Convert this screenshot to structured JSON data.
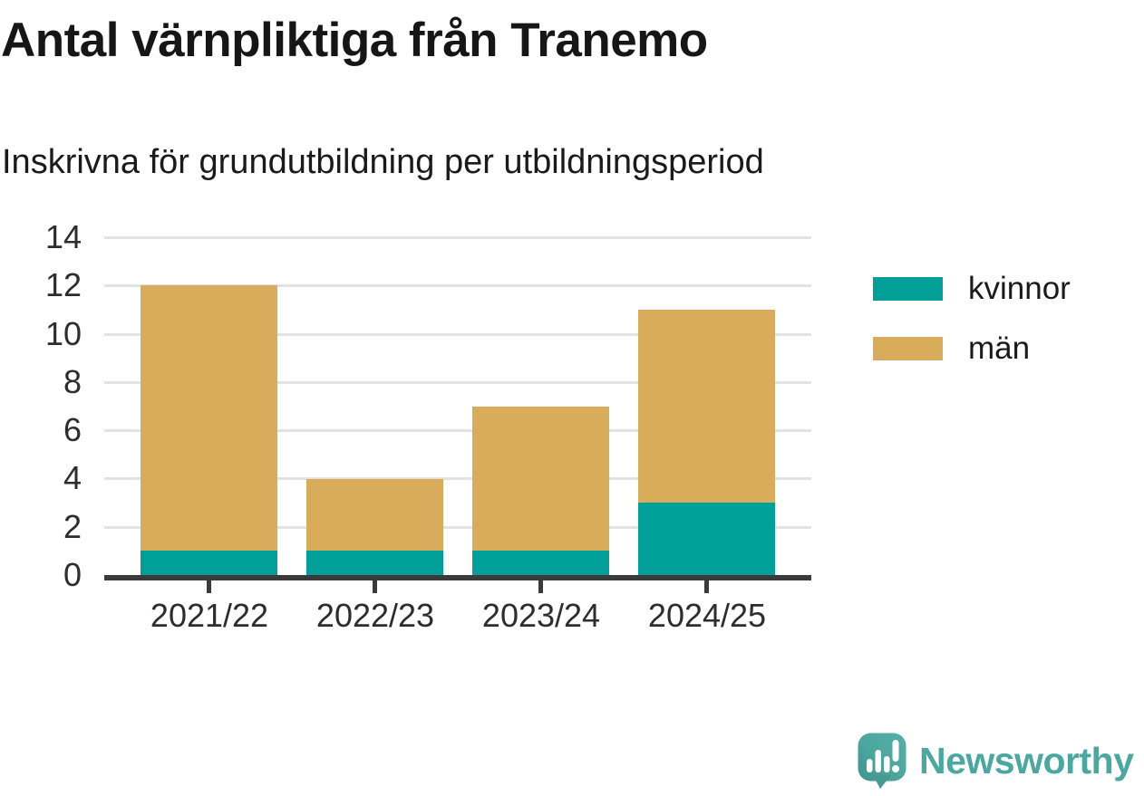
{
  "chart_data": {
    "type": "bar",
    "stacked": true,
    "title": "Antal värnpliktiga från Tranemo",
    "subtitle": "Inskrivna för grundutbildning per utbildningsperiod",
    "categories": [
      "2021/22",
      "2022/23",
      "2023/24",
      "2024/25"
    ],
    "series": [
      {
        "name": "kvinnor",
        "color": "#00A098",
        "values": [
          1,
          1,
          1,
          3
        ]
      },
      {
        "name": "män",
        "color": "#D8AC5A",
        "values": [
          11,
          3,
          6,
          8
        ]
      }
    ],
    "totals": [
      12,
      4,
      7,
      11
    ],
    "xlabel": "",
    "ylabel": "",
    "ylim": [
      0,
      14
    ],
    "yticks": [
      0,
      2,
      4,
      6,
      8,
      10,
      12,
      14
    ],
    "grid": true,
    "legend_position": "right"
  },
  "branding": {
    "logo_text": "Newsworthy",
    "logo_color": "#4BA8A1",
    "logo_icon": "speech-bubble-bar-chart-icon"
  },
  "colors": {
    "axis": "#3A3A3A",
    "gridline": "#E2E2E2",
    "label_text": "#2D2D2D"
  }
}
